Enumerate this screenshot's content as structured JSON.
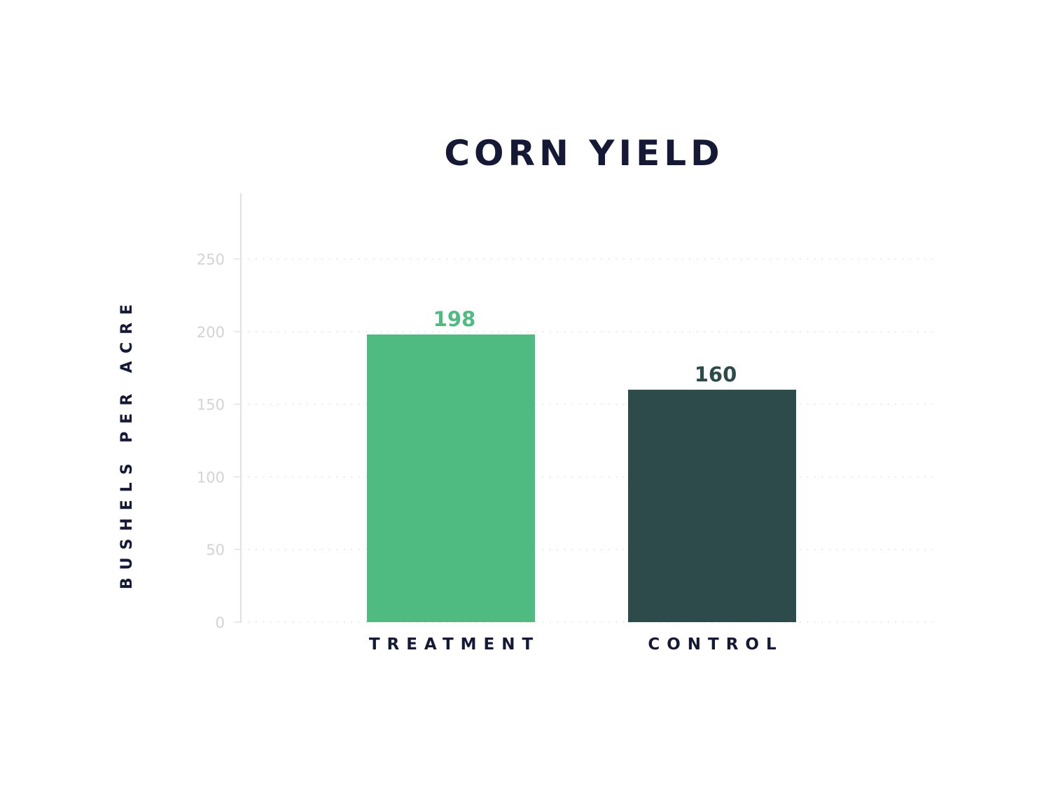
{
  "chart_data": {
    "type": "bar",
    "title": "CORN YIELD",
    "xlabel": "",
    "ylabel": "BUSHELS PER ACRE",
    "categories": [
      "TREATMENT",
      "CONTROL"
    ],
    "values": [
      198,
      160
    ],
    "value_labels": [
      "198",
      "160"
    ],
    "colors": [
      "#50bb80",
      "#2d4b4b"
    ],
    "ylim": [
      0,
      290
    ],
    "yticks": [
      0,
      50,
      100,
      150,
      200,
      250
    ],
    "grid": true,
    "legend": "none"
  }
}
